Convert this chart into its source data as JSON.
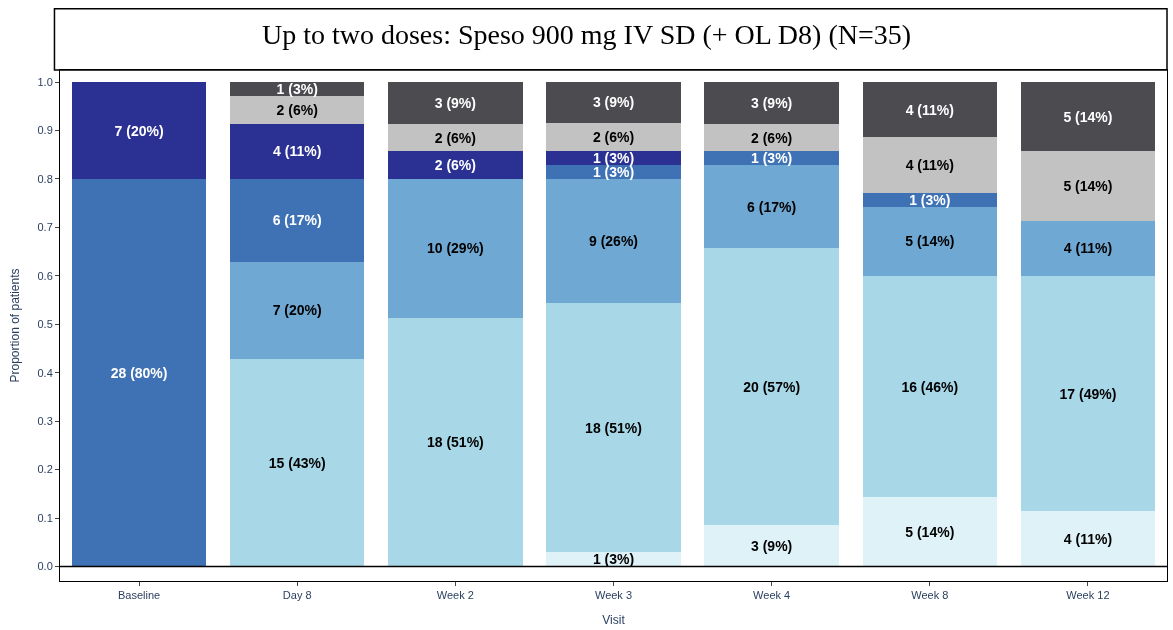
{
  "chart_data": {
    "type": "bar",
    "stacked": true,
    "title": "Up to two doses: Speso 900 mg IV SD (+ OL D8) (N=35)",
    "xlabel": "Visit",
    "ylabel": "Proportion of patients",
    "categories": [
      "Baseline",
      "Day 8",
      "Week 2",
      "Week 3",
      "Week 4",
      "Week 8",
      "Week 12"
    ],
    "series": [
      {
        "color": "#dff2f7",
        "values": [
          null,
          null,
          null,
          0.029,
          0.086,
          0.143,
          0.114
        ],
        "value_labels": [
          null,
          null,
          null,
          "1 (3%)",
          "3 (9%)",
          "5 (14%)",
          "4 (11%)"
        ]
      },
      {
        "color": "#a8d8e8",
        "values": [
          null,
          0.429,
          0.514,
          0.514,
          0.571,
          0.457,
          0.486
        ],
        "value_labels": [
          null,
          "15 (43%)",
          "18 (51%)",
          "18 (51%)",
          "20 (57%)",
          "16 (46%)",
          "17 (49%)"
        ]
      },
      {
        "color": "#6fa8d2",
        "values": [
          null,
          0.2,
          0.286,
          0.257,
          0.171,
          0.143,
          0.114
        ],
        "value_labels": [
          null,
          "7 (20%)",
          "10 (29%)",
          "9 (26%)",
          "6 (17%)",
          "5 (14%)",
          "4 (11%)"
        ]
      },
      {
        "color": "#3e72b4",
        "values": [
          0.8,
          0.171,
          null,
          0.029,
          0.029,
          0.029,
          null
        ],
        "value_labels": [
          "28 (80%)",
          "6 (17%)",
          null,
          "1 (3%)",
          "1 (3%)",
          "1 (3%)",
          null
        ]
      },
      {
        "color": "#2a3192",
        "values": [
          0.2,
          0.114,
          0.057,
          0.029,
          null,
          null,
          null
        ],
        "value_labels": [
          "7 (20%)",
          "4 (11%)",
          "2 (6%)",
          "1 (3%)",
          null,
          null,
          null
        ]
      },
      {
        "color": "#c2c2c2",
        "values": [
          null,
          0.057,
          0.057,
          0.057,
          0.057,
          0.114,
          0.143
        ],
        "value_labels": [
          null,
          "2 (6%)",
          "2 (6%)",
          "2 (6%)",
          "2 (6%)",
          "4 (11%)",
          "5 (14%)"
        ]
      },
      {
        "color": "#4b4b50",
        "values": [
          null,
          0.029,
          0.086,
          0.086,
          0.086,
          0.114,
          0.143
        ],
        "value_labels": [
          null,
          "1 (3%)",
          "3 (9%)",
          "3 (9%)",
          "3 (9%)",
          "4 (11%)",
          "5 (14%)"
        ]
      }
    ],
    "ylim": [
      -0.03,
      1.025
    ],
    "yticks": [
      {
        "value": 0,
        "label": "0.0"
      },
      {
        "value": 0.1,
        "label": "0.1"
      },
      {
        "value": 0.2,
        "label": "0.2"
      },
      {
        "value": 0.3,
        "label": "0.3"
      },
      {
        "value": 0.4,
        "label": "0.4"
      },
      {
        "value": 0.5,
        "label": "0.5"
      },
      {
        "value": 0.6,
        "label": "0.6"
      },
      {
        "value": 0.7,
        "label": "0.7"
      },
      {
        "value": 0.8,
        "label": "0.8"
      },
      {
        "value": 0.9,
        "label": "0.9"
      },
      {
        "value": 1,
        "label": "1.0"
      }
    ],
    "ref_lines": [
      {
        "axis": "y",
        "value": 0,
        "color": "#000000"
      }
    ]
  }
}
